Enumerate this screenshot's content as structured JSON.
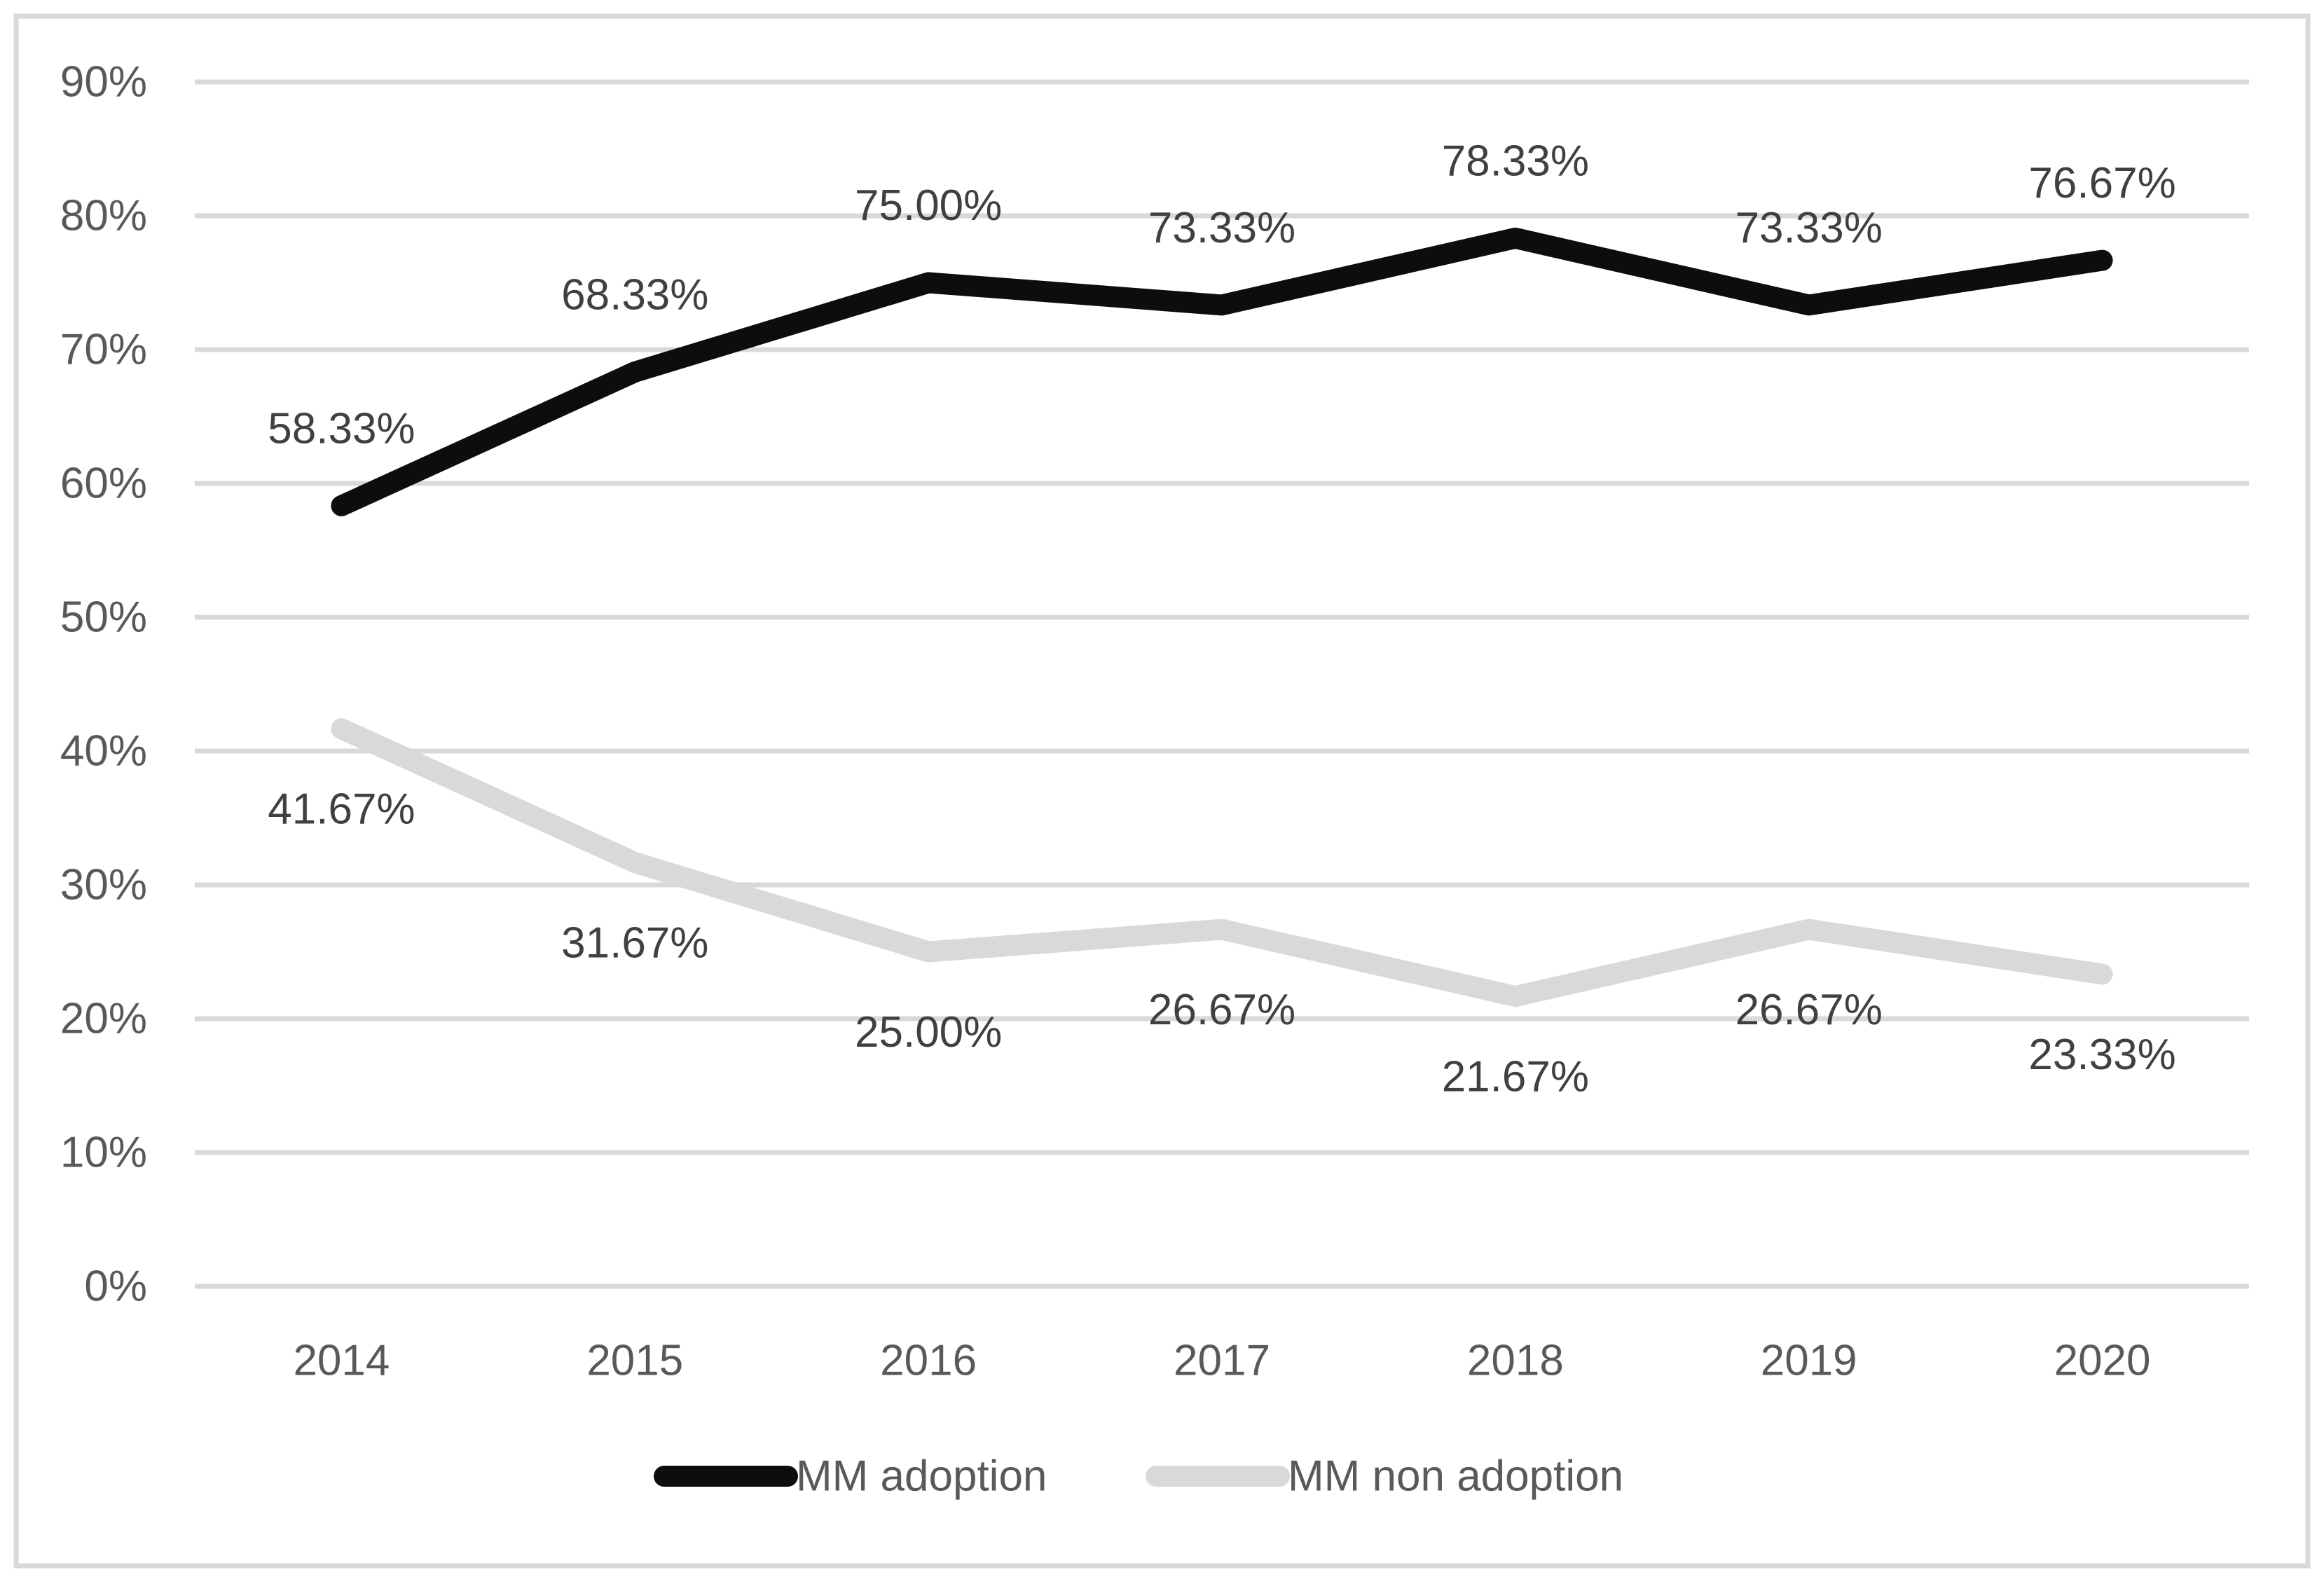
{
  "chart_data": {
    "type": "line",
    "title": "",
    "xlabel": "",
    "ylabel": "",
    "categories": [
      "2014",
      "2015",
      "2016",
      "2017",
      "2018",
      "2019",
      "2020"
    ],
    "series": [
      {
        "name": "MM adoption",
        "color": "#0d0d0d",
        "values": [
          58.33,
          68.33,
          75.0,
          73.33,
          78.33,
          73.33,
          76.67
        ],
        "labels": [
          "58.33%",
          "68.33%",
          "75.00%",
          "73.33%",
          "78.33%",
          "73.33%",
          "76.67%"
        ],
        "label_position": "above"
      },
      {
        "name": "MM non adoption",
        "color": "#d9d9d9",
        "values": [
          41.67,
          31.67,
          25.0,
          26.67,
          21.67,
          26.67,
          23.33
        ],
        "labels": [
          "41.67%",
          "31.67%",
          "25.00%",
          "26.67%",
          "21.67%",
          "26.67%",
          "23.33%"
        ],
        "label_position": "below"
      }
    ],
    "ylim": [
      0,
      90
    ],
    "ytick_step": 10,
    "ytick_labels": [
      "0%",
      "10%",
      "20%",
      "30%",
      "40%",
      "50%",
      "60%",
      "70%",
      "80%",
      "90%"
    ],
    "grid": "horizontal",
    "legend_position": "bottom-center"
  },
  "colors": {
    "background": "#ffffff",
    "border": "#d9d9d9",
    "gridline": "#d9d9d9",
    "axis_text": "#595959",
    "data_label_text": "#404040",
    "legend_text": "#595959"
  }
}
